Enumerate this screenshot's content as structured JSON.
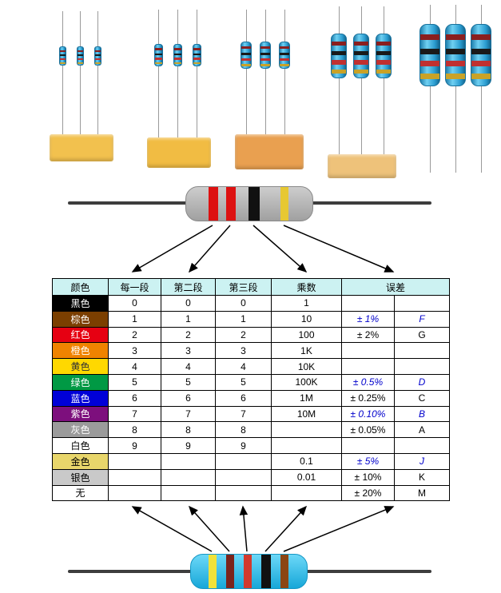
{
  "page": {
    "background": "#ffffff"
  },
  "photo": {
    "body_color": "#2d9fd6",
    "band_colors": [
      "#8a1f1f",
      "#1a1a1a",
      "#c03030",
      "#c9a227"
    ],
    "tape_colors": [
      "#f2c14e",
      "#f1bc43",
      "#e9a050",
      "#eec27a"
    ],
    "lead_color": "#9a9a9a",
    "group_count": 5,
    "resistors_per_group": 3
  },
  "top_resistor": {
    "body_color": "#b5b5b5",
    "bands": [
      {
        "name": "red",
        "color": "#dd1111"
      },
      {
        "name": "red",
        "color": "#dd1111"
      },
      {
        "name": "black",
        "color": "#111111"
      },
      {
        "name": "gold",
        "color": "#e7c832"
      }
    ]
  },
  "bottom_resistor": {
    "body_color": "#2ec1f0",
    "bands": [
      {
        "name": "yellow",
        "color": "#f2e23a"
      },
      {
        "name": "maroon",
        "color": "#7b241c"
      },
      {
        "name": "red",
        "color": "#d23a2e"
      },
      {
        "name": "black",
        "color": "#111111"
      },
      {
        "name": "brown",
        "color": "#8b4513"
      }
    ]
  },
  "table": {
    "header_bg": "#ccf2f2",
    "accent_blue": "#0000cc",
    "header": {
      "color": "颜色",
      "band1": "每一段",
      "band2": "第二段",
      "band3": "第三段",
      "multiplier": "乘数",
      "tolerance": "误差"
    },
    "rows": [
      {
        "key": "black",
        "name": "黑色",
        "bg": "#000000",
        "fg": "#ffffff",
        "d1": "0",
        "d2": "0",
        "d3": "0",
        "mult": "1",
        "tol": "",
        "code": "",
        "blue": false
      },
      {
        "key": "brown",
        "name": "棕色",
        "bg": "#7b3f00",
        "fg": "#ffffff",
        "d1": "1",
        "d2": "1",
        "d3": "1",
        "mult": "10",
        "tol": "± 1%",
        "code": "F",
        "blue": true
      },
      {
        "key": "red",
        "name": "红色",
        "bg": "#e60012",
        "fg": "#ffffff",
        "d1": "2",
        "d2": "2",
        "d3": "2",
        "mult": "100",
        "tol": "± 2%",
        "code": "G",
        "blue": false
      },
      {
        "key": "orange",
        "name": "橙色",
        "bg": "#f08300",
        "fg": "#ffffff",
        "d1": "3",
        "d2": "3",
        "d3": "3",
        "mult": "1K",
        "tol": "",
        "code": "",
        "blue": false
      },
      {
        "key": "yellow",
        "name": "黄色",
        "bg": "#ffd800",
        "fg": "#333333",
        "d1": "4",
        "d2": "4",
        "d3": "4",
        "mult": "10K",
        "tol": "",
        "code": "",
        "blue": false
      },
      {
        "key": "green",
        "name": "绿色",
        "bg": "#009944",
        "fg": "#ffffff",
        "d1": "5",
        "d2": "5",
        "d3": "5",
        "mult": "100K",
        "tol": "± 0.5%",
        "code": "D",
        "blue": true
      },
      {
        "key": "blue",
        "name": "蓝色",
        "bg": "#0000d8",
        "fg": "#ffffff",
        "d1": "6",
        "d2": "6",
        "d3": "6",
        "mult": "1M",
        "tol": "± 0.25%",
        "code": "C",
        "blue": false
      },
      {
        "key": "purple",
        "name": "紫色",
        "bg": "#7d0f7d",
        "fg": "#ffffff",
        "d1": "7",
        "d2": "7",
        "d3": "7",
        "mult": "10M",
        "tol": "± 0.10%",
        "code": "B",
        "blue": true
      },
      {
        "key": "gray",
        "name": "灰色",
        "bg": "#9b9b9b",
        "fg": "#ffffff",
        "d1": "8",
        "d2": "8",
        "d3": "8",
        "mult": "",
        "tol": "± 0.05%",
        "code": "A",
        "blue": false
      },
      {
        "key": "white",
        "name": "白色",
        "bg": "#ffffff",
        "fg": "#000000",
        "d1": "9",
        "d2": "9",
        "d3": "9",
        "mult": "",
        "tol": "",
        "code": "",
        "blue": false
      },
      {
        "key": "gold",
        "name": "金色",
        "bg": "#e8d66b",
        "fg": "#000000",
        "d1": "",
        "d2": "",
        "d3": "",
        "mult": "0.1",
        "tol": "± 5%",
        "code": "J",
        "blue": true
      },
      {
        "key": "silver",
        "name": "银色",
        "bg": "#c9c9c9",
        "fg": "#000000",
        "d1": "",
        "d2": "",
        "d3": "",
        "mult": "0.01",
        "tol": "± 10%",
        "code": "K",
        "blue": false
      },
      {
        "key": "none",
        "name": "无",
        "bg": "#ffffff",
        "fg": "#000000",
        "d1": "",
        "d2": "",
        "d3": "",
        "mult": "",
        "tol": "± 20%",
        "code": "M",
        "blue": false
      }
    ]
  }
}
